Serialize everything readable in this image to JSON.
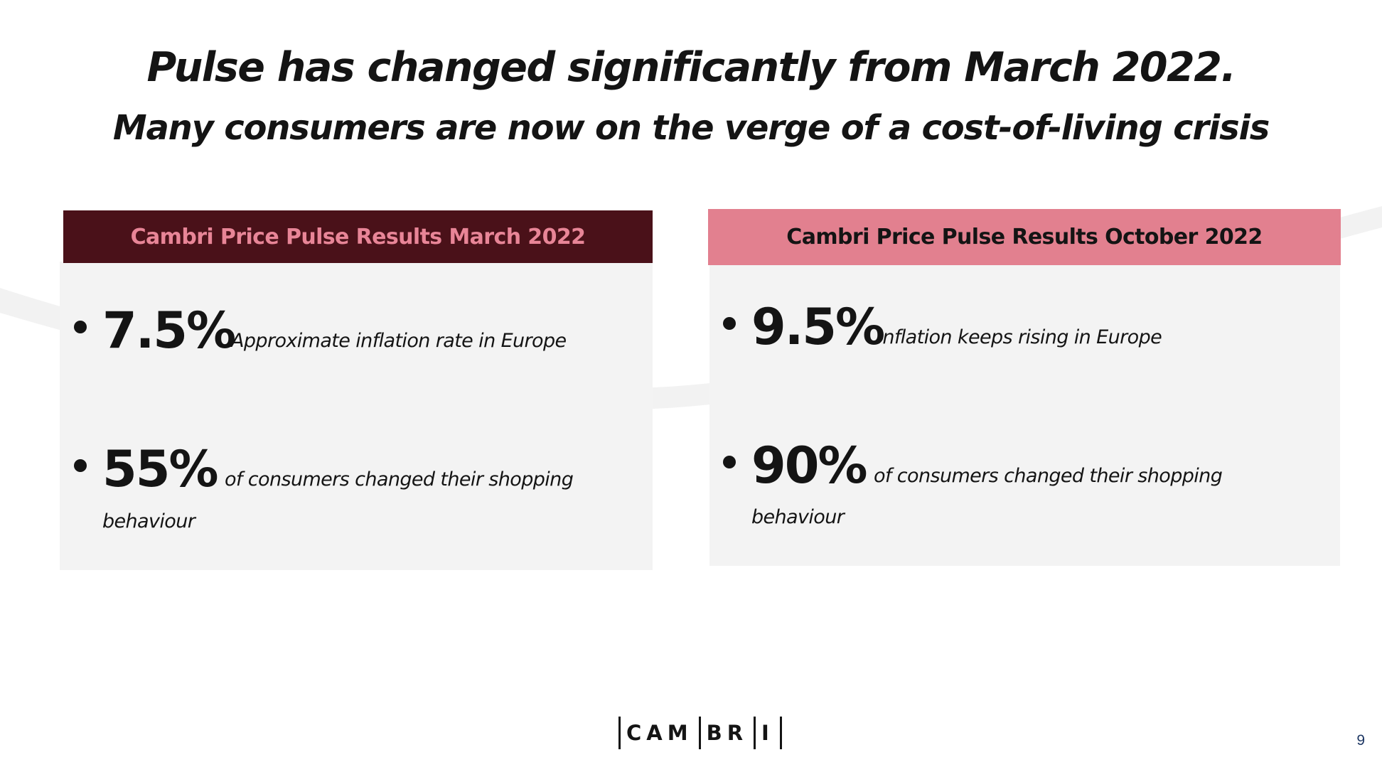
{
  "title": "Pulse has changed significantly from March 2022.",
  "subtitle": "Many consumers are now on the verge of a cost-of-living crisis",
  "panels": {
    "march": {
      "header": "Cambri Price Pulse Results March 2022",
      "header_bg": "#4a1119",
      "header_text_color": "#e88597",
      "stats": [
        {
          "value": "7.5%",
          "desc": "Approximate inflation rate in Europe",
          "desc_cont": ""
        },
        {
          "value": "55%",
          "desc": "of consumers changed their shopping",
          "desc_cont": "behaviour"
        }
      ]
    },
    "october": {
      "header": "Cambri Price Pulse Results October 2022",
      "header_bg": "#e2808f",
      "header_text_color": "#141414",
      "stats": [
        {
          "value": "9.5%",
          "desc": "Inflation keeps rising in Europe",
          "desc_cont": ""
        },
        {
          "value": "90%",
          "desc": "of consumers changed their shopping",
          "desc_cont": "behaviour"
        }
      ]
    }
  },
  "logo": {
    "segments": [
      "CAM",
      "BR",
      "I"
    ]
  },
  "page_number": "9"
}
